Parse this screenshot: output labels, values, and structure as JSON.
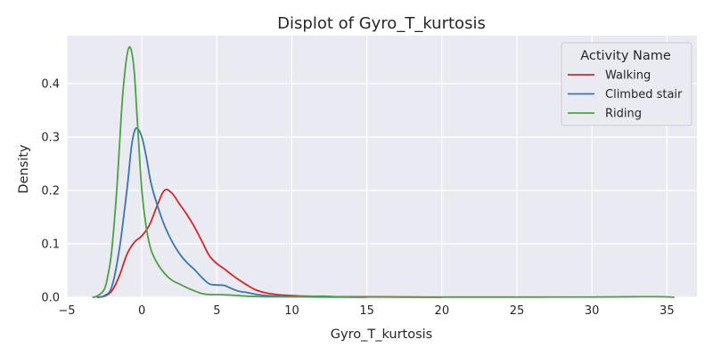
{
  "chart_data": {
    "type": "line",
    "title": "Displot of Gyro_T_kurtosis",
    "xlabel": "Gyro_T_kurtosis",
    "ylabel": "Density",
    "xlim": [
      -5,
      37
    ],
    "ylim": [
      0,
      0.49
    ],
    "xticks": [
      -5,
      0,
      5,
      10,
      15,
      20,
      25,
      30,
      35
    ],
    "yticks": [
      0.0,
      0.1,
      0.2,
      0.3,
      0.4
    ],
    "grid": true,
    "legend": {
      "title": "Activity Name",
      "placement": "top-right"
    },
    "series": [
      {
        "name": "Walking",
        "color": "#d62728",
        "points": [
          [
            -3.0,
            0.0
          ],
          [
            -2.5,
            0.002
          ],
          [
            -2.0,
            0.012
          ],
          [
            -1.5,
            0.04
          ],
          [
            -1.0,
            0.08
          ],
          [
            -0.5,
            0.103
          ],
          [
            0,
            0.115
          ],
          [
            0.5,
            0.135
          ],
          [
            1.0,
            0.17
          ],
          [
            1.5,
            0.2
          ],
          [
            2.0,
            0.195
          ],
          [
            2.5,
            0.175
          ],
          [
            3.0,
            0.155
          ],
          [
            3.5,
            0.132
          ],
          [
            4.0,
            0.105
          ],
          [
            4.5,
            0.078
          ],
          [
            5.0,
            0.063
          ],
          [
            5.5,
            0.053
          ],
          [
            6.0,
            0.042
          ],
          [
            6.5,
            0.032
          ],
          [
            7.0,
            0.023
          ],
          [
            7.5,
            0.015
          ],
          [
            8.0,
            0.01
          ],
          [
            8.5,
            0.007
          ],
          [
            9.0,
            0.005
          ],
          [
            10,
            0.003
          ],
          [
            11,
            0.002
          ],
          [
            13,
            0.001
          ],
          [
            15,
            0.001
          ],
          [
            17,
            0.0005
          ],
          [
            20,
            0.0
          ]
        ]
      },
      {
        "name": "Climbed stair",
        "color": "#3a75b0",
        "points": [
          [
            -3.0,
            0.0
          ],
          [
            -2.5,
            0.003
          ],
          [
            -2.0,
            0.02
          ],
          [
            -1.5,
            0.09
          ],
          [
            -1.0,
            0.2
          ],
          [
            -0.7,
            0.28
          ],
          [
            -0.5,
            0.31
          ],
          [
            -0.3,
            0.316
          ],
          [
            0,
            0.3
          ],
          [
            0.3,
            0.262
          ],
          [
            0.6,
            0.215
          ],
          [
            1.0,
            0.175
          ],
          [
            1.5,
            0.135
          ],
          [
            2.0,
            0.105
          ],
          [
            2.5,
            0.082
          ],
          [
            3.0,
            0.065
          ],
          [
            3.5,
            0.052
          ],
          [
            4.0,
            0.037
          ],
          [
            4.5,
            0.025
          ],
          [
            5.0,
            0.023
          ],
          [
            5.5,
            0.022
          ],
          [
            6.0,
            0.016
          ],
          [
            6.5,
            0.011
          ],
          [
            7.0,
            0.009
          ],
          [
            7.5,
            0.006
          ],
          [
            8.0,
            0.004
          ],
          [
            9.0,
            0.002
          ],
          [
            10,
            0.001
          ],
          [
            12,
            0.0005
          ],
          [
            15,
            0.0
          ]
        ]
      },
      {
        "name": "Riding",
        "color": "#4ca146",
        "points": [
          [
            -3.3,
            0.0
          ],
          [
            -3.0,
            0.002
          ],
          [
            -2.5,
            0.015
          ],
          [
            -2.2,
            0.05
          ],
          [
            -2.0,
            0.09
          ],
          [
            -1.7,
            0.19
          ],
          [
            -1.5,
            0.28
          ],
          [
            -1.3,
            0.37
          ],
          [
            -1.1,
            0.43
          ],
          [
            -0.9,
            0.465
          ],
          [
            -0.7,
            0.462
          ],
          [
            -0.5,
            0.42
          ],
          [
            -0.3,
            0.33
          ],
          [
            0,
            0.2
          ],
          [
            0.3,
            0.13
          ],
          [
            0.6,
            0.09
          ],
          [
            1.0,
            0.065
          ],
          [
            1.5,
            0.045
          ],
          [
            2.0,
            0.032
          ],
          [
            2.5,
            0.025
          ],
          [
            3.0,
            0.018
          ],
          [
            3.5,
            0.012
          ],
          [
            4.0,
            0.007
          ],
          [
            4.5,
            0.005
          ],
          [
            5.0,
            0.005
          ],
          [
            6.0,
            0.004
          ],
          [
            7.0,
            0.002
          ],
          [
            8,
            0.001
          ],
          [
            10,
            0.001
          ],
          [
            12,
            0.002
          ],
          [
            13,
            0.001
          ],
          [
            15,
            0.0005
          ],
          [
            20,
            0.0003
          ],
          [
            25,
            0.0003
          ],
          [
            30,
            0.0004
          ],
          [
            33,
            0.001
          ],
          [
            34.5,
            0.001
          ],
          [
            35.5,
            0.0
          ]
        ]
      }
    ]
  }
}
